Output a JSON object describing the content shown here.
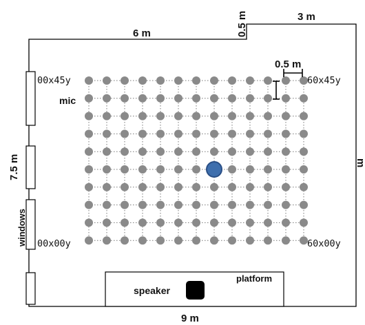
{
  "dimensions": {
    "top_width": "6 m",
    "notch": "0.5 m",
    "top_right": "3 m",
    "bottom_width": "9 m",
    "left_height": "7.5 m",
    "right_height_partial": "m",
    "spacing_label": "0.5 m"
  },
  "corners": {
    "top_left": "00x45y",
    "top_right": "60x45y",
    "bottom_left": "00x00y",
    "bottom_right": "60x00y"
  },
  "labels": {
    "mic": "mic",
    "windows": "windows",
    "speaker": "speaker",
    "platform": "platform"
  },
  "grid": {
    "columns": 13,
    "rows": 10,
    "highlight_col": 7,
    "highlight_row": 5
  },
  "colors": {
    "mic_dot": "#8a8a8a",
    "highlight": "#3f6fad",
    "highlight_stroke": "#2a4f86",
    "speaker": "#000000"
  }
}
